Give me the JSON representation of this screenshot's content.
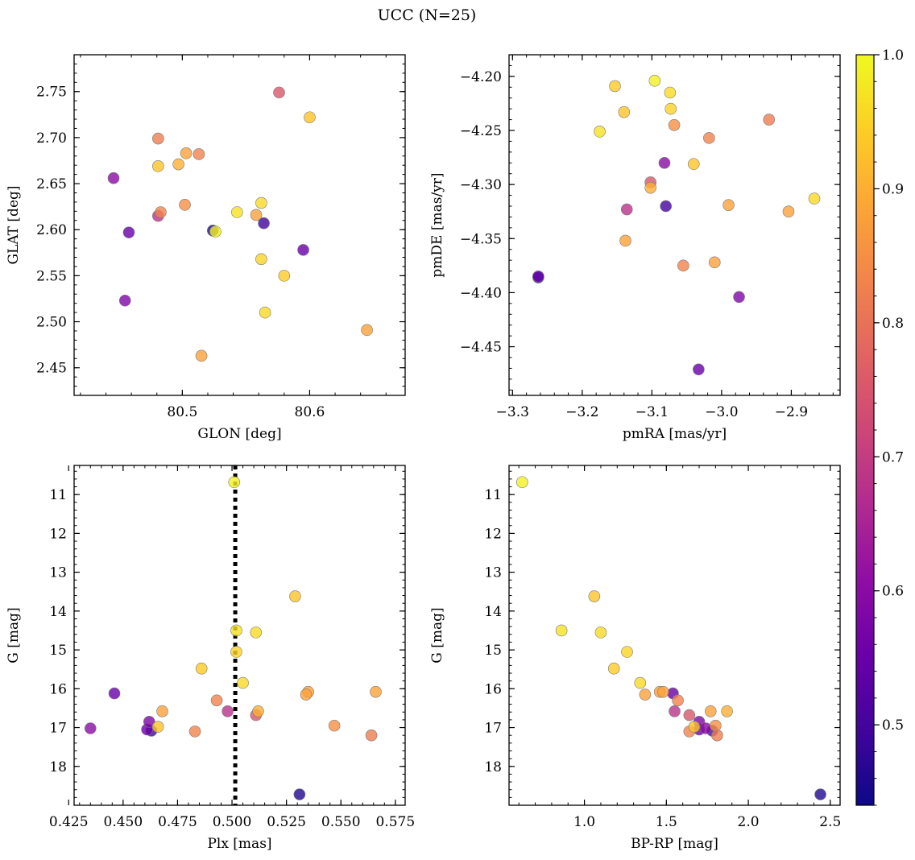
{
  "title": "UCC (N=25)",
  "colorbar": {
    "range": [
      0.44,
      1.0
    ],
    "ticks": [
      0.5,
      0.6,
      0.7,
      0.8,
      0.9,
      1.0
    ],
    "tick_labels": [
      "0.5",
      "0.6",
      "0.7",
      "0.8",
      "0.9",
      "1.0"
    ],
    "colormap": "plasma"
  },
  "stars": [
    {
      "p": 0.93,
      "glon": 80.481,
      "glat": 2.669,
      "pmra": -3.14,
      "pmde": -4.233,
      "plx": 0.466,
      "g": 16.98,
      "bprp": 1.67
    },
    {
      "p": 0.9,
      "glon": 80.497,
      "glat": 2.671,
      "pmra": -3.102,
      "pmde": -4.303,
      "plx": 0.512,
      "g": 16.58,
      "bprp": 1.87
    },
    {
      "p": 0.85,
      "glon": 80.502,
      "glat": 2.627,
      "pmra": -3.068,
      "pmde": -4.245,
      "plx": 0.547,
      "g": 16.95,
      "bprp": 1.8
    },
    {
      "p": 0.88,
      "glon": 80.503,
      "glat": 2.683,
      "pmra": -3.01,
      "pmde": -4.372,
      "plx": 0.566,
      "g": 16.08,
      "bprp": 1.46
    },
    {
      "p": 0.83,
      "glon": 80.513,
      "glat": 2.682,
      "pmra": -3.018,
      "pmde": -4.257,
      "plx": 0.493,
      "g": 16.3,
      "bprp": 1.57
    },
    {
      "p": 0.82,
      "glon": 80.481,
      "glat": 2.699,
      "pmra": -2.932,
      "pmde": -4.24,
      "plx": 0.564,
      "g": 17.2,
      "bprp": 1.81
    },
    {
      "p": 0.83,
      "glon": 80.483,
      "glat": 2.619,
      "pmra": -3.055,
      "pmde": -4.375,
      "plx": 0.483,
      "g": 17.1,
      "bprp": 1.64
    },
    {
      "p": 0.88,
      "glon": 80.558,
      "glat": 2.616,
      "pmra": -2.99,
      "pmde": -4.319,
      "plx": 0.468,
      "g": 16.58,
      "bprp": 1.77
    },
    {
      "p": 0.88,
      "glon": 80.645,
      "glat": 2.491,
      "pmra": -2.904,
      "pmde": -4.325,
      "plx": 0.535,
      "g": 16.08,
      "bprp": 1.48
    },
    {
      "p": 0.88,
      "glon": 80.515,
      "glat": 2.463,
      "pmra": -3.138,
      "pmde": -4.352,
      "plx": 0.534,
      "g": 16.15,
      "bprp": 1.37
    },
    {
      "p": 0.75,
      "glon": 80.576,
      "glat": 2.749,
      "pmra": -3.102,
      "pmde": -4.298,
      "plx": 0.511,
      "g": 16.68,
      "bprp": 1.64
    },
    {
      "p": 0.93,
      "glon": 80.6,
      "glat": 2.722,
      "pmra": -3.04,
      "pmde": -4.281,
      "plx": 0.529,
      "g": 13.62,
      "bprp": 1.06
    },
    {
      "p": 0.6,
      "glon": 80.446,
      "glat": 2.656,
      "pmra": -3.082,
      "pmde": -4.28,
      "plx": 0.435,
      "g": 17.02,
      "bprp": 1.74
    },
    {
      "p": 0.55,
      "glon": 80.458,
      "glat": 2.597,
      "pmra": -3.263,
      "pmde": -4.385,
      "plx": 0.446,
      "g": 16.12,
      "bprp": 1.54
    },
    {
      "p": 0.58,
      "glon": 80.455,
      "glat": 2.523,
      "pmra": -2.975,
      "pmde": -4.404,
      "plx": 0.462,
      "g": 16.85,
      "bprp": 1.7
    },
    {
      "p": 0.5,
      "glon": 80.564,
      "glat": 2.607,
      "pmra": -3.08,
      "pmde": -4.32,
      "plx": 0.463,
      "g": 17.08,
      "bprp": 1.78
    },
    {
      "p": 0.55,
      "glon": 80.595,
      "glat": 2.578,
      "pmra": -3.033,
      "pmde": -4.471,
      "plx": 0.461,
      "g": 17.05,
      "bprp": 1.7
    },
    {
      "p": 0.68,
      "glon": 80.481,
      "glat": 2.615,
      "pmra": -3.136,
      "pmde": -4.323,
      "plx": 0.498,
      "g": 16.58,
      "bprp": 1.55
    },
    {
      "p": 0.46,
      "glon": 80.524,
      "glat": 2.599,
      "pmra": -3.263,
      "pmde": -4.386,
      "plx": 0.531,
      "g": 18.72,
      "bprp": 2.44
    },
    {
      "p": 0.99,
      "glon": 80.526,
      "glat": 2.598,
      "pmra": -3.096,
      "pmde": -4.204,
      "plx": 0.501,
      "g": 10.68,
      "bprp": 0.62
    },
    {
      "p": 0.97,
      "glon": 80.543,
      "glat": 2.619,
      "pmra": -3.175,
      "pmde": -4.251,
      "plx": 0.502,
      "g": 14.5,
      "bprp": 0.86
    },
    {
      "p": 0.96,
      "glon": 80.562,
      "glat": 2.629,
      "pmra": -3.074,
      "pmde": -4.215,
      "plx": 0.511,
      "g": 14.55,
      "bprp": 1.1
    },
    {
      "p": 0.95,
      "glon": 80.562,
      "glat": 2.568,
      "pmra": -3.073,
      "pmde": -4.23,
      "plx": 0.502,
      "g": 15.05,
      "bprp": 1.26
    },
    {
      "p": 0.94,
      "glon": 80.58,
      "glat": 2.55,
      "pmra": -3.153,
      "pmde": -4.209,
      "plx": 0.486,
      "g": 15.48,
      "bprp": 1.18
    },
    {
      "p": 0.96,
      "glon": 80.565,
      "glat": 2.51,
      "pmra": -2.867,
      "pmde": -4.313,
      "plx": 0.505,
      "g": 15.85,
      "bprp": 1.34
    }
  ],
  "chart_data": [
    {
      "type": "scatter",
      "xlabel": "GLON [deg]",
      "ylabel": "GLAT [deg]",
      "xlim": [
        80.415,
        80.675
      ],
      "ylim": [
        2.42,
        2.79
      ],
      "x_ticks": [
        80.5,
        80.6
      ],
      "x_tick_labels": [
        "80.5",
        "80.6"
      ],
      "x_minor": 0.02,
      "y_ticks": [
        2.45,
        2.5,
        2.55,
        2.6,
        2.65,
        2.7,
        2.75
      ],
      "y_tick_labels": [
        "2.45",
        "2.50",
        "2.55",
        "2.60",
        "2.65",
        "2.70",
        "2.75"
      ],
      "y_minor": 0.01,
      "x_field": "glon",
      "y_field": "glat",
      "color_field": "p"
    },
    {
      "type": "scatter",
      "xlabel": "pmRA [mas/yr]",
      "ylabel": "pmDE [mas/yr]",
      "xlim": [
        -3.305,
        -2.83
      ],
      "ylim": [
        -4.495,
        -4.18
      ],
      "x_ticks": [
        -3.3,
        -3.2,
        -3.1,
        -3.0,
        -2.9
      ],
      "x_tick_labels": [
        "−3.3",
        "−3.2",
        "−3.1",
        "−3.0",
        "−2.9"
      ],
      "x_minor": 0.02,
      "y_ticks": [
        -4.45,
        -4.4,
        -4.35,
        -4.3,
        -4.25,
        -4.2
      ],
      "y_tick_labels": [
        "−4.45",
        "−4.40",
        "−4.35",
        "−4.30",
        "−4.25",
        "−4.20"
      ],
      "y_minor": 0.01,
      "x_field": "pmra",
      "y_field": "pmde",
      "color_field": "p"
    },
    {
      "type": "scatter",
      "xlabel": "Plx [mas]",
      "ylabel": "G [mag]",
      "xlim": [
        0.4275,
        0.5795
      ],
      "ylim": [
        19.0,
        10.25
      ],
      "y_inverted": true,
      "x_ticks": [
        0.425,
        0.45,
        0.475,
        0.5,
        0.525,
        0.55,
        0.575
      ],
      "x_tick_labels": [
        "0.425",
        "0.450",
        "0.475",
        "0.500",
        "0.525",
        "0.550",
        "0.575"
      ],
      "x_minor": 0.005,
      "y_ticks": [
        11,
        12,
        13,
        14,
        15,
        16,
        17,
        18
      ],
      "y_tick_labels": [
        "11",
        "12",
        "13",
        "14",
        "15",
        "16",
        "17",
        "18"
      ],
      "y_minor": 0.2,
      "vline": {
        "x": 0.5015,
        "style": "dotted",
        "color": "#000000"
      },
      "x_field": "plx",
      "y_field": "g",
      "color_field": "p"
    },
    {
      "type": "scatter",
      "xlabel": "BP-RP [mag]",
      "ylabel": "G [mag]",
      "xlim": [
        0.54,
        2.56
      ],
      "ylim": [
        19.0,
        10.25
      ],
      "y_inverted": true,
      "x_ticks": [
        1.0,
        1.5,
        2.0,
        2.5
      ],
      "x_tick_labels": [
        "1.0",
        "1.5",
        "2.0",
        "2.5"
      ],
      "x_minor": 0.1,
      "y_ticks": [
        11,
        12,
        13,
        14,
        15,
        16,
        17,
        18
      ],
      "y_tick_labels": [
        "11",
        "12",
        "13",
        "14",
        "15",
        "16",
        "17",
        "18"
      ],
      "y_minor": 0.2,
      "x_field": "bprp",
      "y_field": "g",
      "color_field": "p"
    }
  ]
}
